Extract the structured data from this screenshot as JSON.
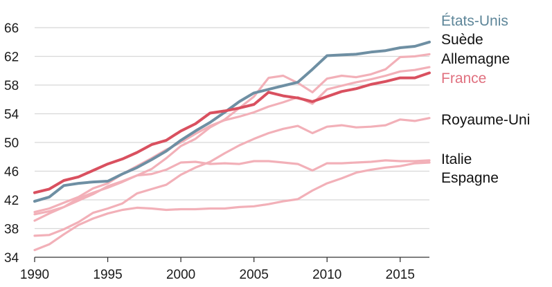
{
  "chart_data": {
    "type": "line",
    "title": "",
    "xlabel": "",
    "ylabel": "",
    "xlim": [
      1990,
      2017
    ],
    "ylim": [
      34,
      66
    ],
    "y_ticks": [
      "66",
      "62",
      "58",
      "54",
      "50",
      "46",
      "42",
      "38",
      "34"
    ],
    "x_ticks": [
      "1990",
      "1995",
      "2000",
      "2005",
      "2010",
      "2015"
    ],
    "grid": "horizontal",
    "legend": "direct labels at right end of lines",
    "series": [
      {
        "name": "États-Unis",
        "color": "#6e8fa3",
        "emphasis": "strong",
        "x": [
          1990,
          1991,
          1992,
          1993,
          1994,
          1995,
          1996,
          1997,
          1998,
          1999,
          2000,
          2001,
          2002,
          2003,
          2004,
          2005,
          2006,
          2007,
          2008,
          2009,
          2010,
          2011,
          2012,
          2013,
          2014,
          2015,
          2016,
          2017
        ],
        "y": [
          41.8,
          42.4,
          44.0,
          44.3,
          44.5,
          44.6,
          45.6,
          46.5,
          47.6,
          48.8,
          50.3,
          51.6,
          52.8,
          54.2,
          55.7,
          56.9,
          57.4,
          57.9,
          58.4,
          60.2,
          62.1,
          62.2,
          62.3,
          62.6,
          62.8,
          63.2,
          63.4,
          64.0
        ]
      },
      {
        "name": "Suède",
        "color": "#f2b0b8",
        "emphasis": "light",
        "x": [
          1990,
          1991,
          1992,
          1993,
          1994,
          1995,
          1996,
          1997,
          1998,
          1999,
          2000,
          2001,
          2002,
          2003,
          2004,
          2005,
          2006,
          2007,
          2008,
          2009,
          2010,
          2011,
          2012,
          2013,
          2014,
          2015,
          2016,
          2017
        ],
        "y": [
          40.3,
          40.8,
          41.6,
          42.4,
          43.6,
          44.3,
          45.6,
          46.7,
          47.8,
          49.0,
          50.0,
          51.2,
          52.3,
          53.1,
          53.6,
          54.2,
          55.0,
          55.6,
          56.3,
          55.4,
          57.4,
          57.9,
          58.4,
          58.8,
          59.3,
          59.9,
          60.1,
          60.5
        ]
      },
      {
        "name": "Allemagne",
        "color": "#f2b0b8",
        "emphasis": "light",
        "x": [
          1990,
          1991,
          1992,
          1993,
          1994,
          1995,
          1996,
          1997,
          1998,
          1999,
          2000,
          2001,
          2002,
          2003,
          2004,
          2005,
          2006,
          2007,
          2008,
          2009,
          2010,
          2011,
          2012,
          2013,
          2014,
          2015,
          2016,
          2017
        ],
        "y": [
          39.1,
          40.1,
          41.0,
          41.9,
          42.8,
          43.9,
          44.6,
          45.4,
          46.3,
          47.8,
          49.5,
          50.5,
          52.1,
          53.2,
          54.8,
          56.4,
          59.0,
          59.3,
          58.3,
          57.0,
          58.9,
          59.3,
          59.1,
          59.5,
          60.2,
          61.9,
          62.0,
          62.3
        ]
      },
      {
        "name": "France",
        "color": "#d9505f",
        "emphasis": "strong",
        "x": [
          1990,
          1991,
          1992,
          1993,
          1994,
          1995,
          1996,
          1997,
          1998,
          1999,
          2000,
          2001,
          2002,
          2003,
          2004,
          2005,
          2006,
          2007,
          2008,
          2009,
          2010,
          2011,
          2012,
          2013,
          2014,
          2015,
          2016,
          2017
        ],
        "y": [
          43.0,
          43.5,
          44.7,
          45.2,
          46.1,
          47.0,
          47.7,
          48.6,
          49.7,
          50.3,
          51.6,
          52.6,
          54.1,
          54.4,
          54.8,
          55.3,
          57.0,
          56.5,
          56.2,
          55.7,
          56.4,
          57.1,
          57.5,
          58.1,
          58.5,
          59.0,
          59.0,
          59.7
        ]
      },
      {
        "name": "Royaume-Uni",
        "color": "#f2b0b8",
        "emphasis": "light",
        "x": [
          1990,
          1991,
          1992,
          1993,
          1994,
          1995,
          1996,
          1997,
          1998,
          1999,
          2000,
          2001,
          2002,
          2003,
          2004,
          2005,
          2006,
          2007,
          2008,
          2009,
          2010,
          2011,
          2012,
          2013,
          2014,
          2015,
          2016,
          2017
        ],
        "y": [
          37.0,
          37.1,
          37.9,
          38.9,
          40.2,
          40.8,
          41.5,
          42.9,
          43.5,
          44.1,
          45.5,
          46.5,
          47.3,
          48.5,
          49.6,
          50.5,
          51.3,
          51.9,
          52.3,
          51.3,
          52.2,
          52.4,
          52.1,
          52.2,
          52.4,
          53.2,
          53.0,
          53.4
        ]
      },
      {
        "name": "Italie",
        "color": "#f2b0b8",
        "emphasis": "light",
        "x": [
          1990,
          1991,
          1992,
          1993,
          1994,
          1995,
          1996,
          1997,
          1998,
          1999,
          2000,
          2001,
          2002,
          2003,
          2004,
          2005,
          2006,
          2007,
          2008,
          2009,
          2010,
          2011,
          2012,
          2013,
          2014,
          2015,
          2016,
          2017
        ],
        "y": [
          40.0,
          40.4,
          41.0,
          42.2,
          43.0,
          43.7,
          44.5,
          45.4,
          45.6,
          46.2,
          47.2,
          47.3,
          47.0,
          47.1,
          47.0,
          47.4,
          47.4,
          47.2,
          47.0,
          46.1,
          47.1,
          47.1,
          47.2,
          47.3,
          47.5,
          47.4,
          47.4,
          47.5
        ]
      },
      {
        "name": "Espagne",
        "color": "#f2b0b8",
        "emphasis": "light",
        "x": [
          1990,
          1991,
          1992,
          1993,
          1994,
          1995,
          1996,
          1997,
          1998,
          1999,
          2000,
          2001,
          2002,
          2003,
          2004,
          2005,
          2006,
          2007,
          2008,
          2009,
          2010,
          2011,
          2012,
          2013,
          2014,
          2015,
          2016,
          2017
        ],
        "y": [
          35.0,
          35.8,
          37.2,
          38.5,
          39.4,
          40.1,
          40.6,
          40.9,
          40.8,
          40.6,
          40.7,
          40.7,
          40.8,
          40.8,
          41.0,
          41.1,
          41.4,
          41.8,
          42.1,
          43.3,
          44.3,
          45.0,
          45.8,
          46.2,
          46.5,
          46.7,
          47.1,
          47.2
        ]
      }
    ]
  }
}
